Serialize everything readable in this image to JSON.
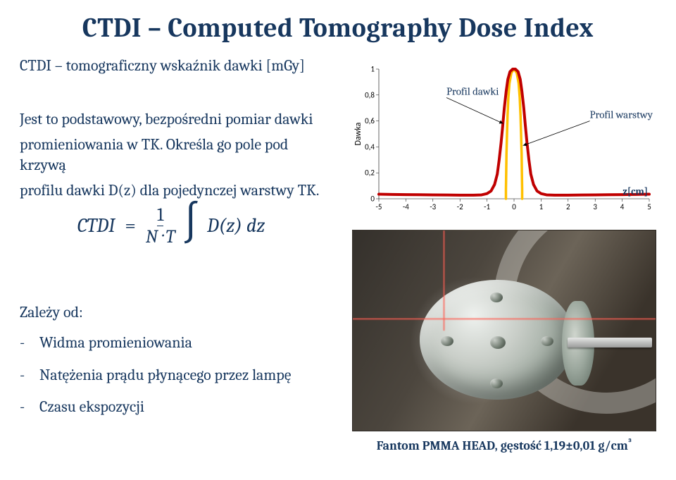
{
  "title": "CTDI – Computed Tomography Dose Index",
  "subtitle": "CTDI – tomograficzny wskaźnik dawki [mGy]",
  "paragraph_l1": "Jest to podstawowy, bezpośredni pomiar dawki",
  "paragraph_l2": "promieniowania w TK. Określa go pole pod krzywą",
  "paragraph_l3": "profilu dawki D(z) dla pojedynczej warstwy TK.",
  "formula": {
    "lhs": "CTDI",
    "frac_num": "1",
    "frac_den": "N · T",
    "integrand": "D(z) dz"
  },
  "list_lead": "Zależy od:",
  "bullets": [
    "Widma promieniowania",
    "Natężenia prądu płynącego przez lampę",
    "Czasu ekspozycji"
  ],
  "photo_caption": "Fantom PMMA HEAD, gęstość 1,19±0,01 g/cm³",
  "chart": {
    "type": "line",
    "xlim": [
      -5,
      5
    ],
    "ylim": [
      0,
      1
    ],
    "xtick_step": 1,
    "ytick_step": 0.2,
    "ylabel": "Dawka",
    "xunit_label": "z[cm]",
    "annot_profile": "Profil dawki",
    "annot_layer": "Profil warstwy",
    "background_color": "#ffffff",
    "axis_color": "#000000",
    "tick_color": "#000000",
    "tick_label_color": "#000000",
    "tick_fontsize": 11,
    "outer_curve": {
      "stroke": "#c00000",
      "stroke_width": 4,
      "points": [
        [
          -5.0,
          0.035
        ],
        [
          -4.5,
          0.033
        ],
        [
          -4.0,
          0.032
        ],
        [
          -3.5,
          0.031
        ],
        [
          -3.0,
          0.03
        ],
        [
          -2.5,
          0.029
        ],
        [
          -2.0,
          0.028
        ],
        [
          -1.5,
          0.028
        ],
        [
          -1.2,
          0.03
        ],
        [
          -1.0,
          0.04
        ],
        [
          -0.85,
          0.06
        ],
        [
          -0.72,
          0.11
        ],
        [
          -0.62,
          0.19
        ],
        [
          -0.55,
          0.3
        ],
        [
          -0.48,
          0.43
        ],
        [
          -0.42,
          0.56
        ],
        [
          -0.36,
          0.7
        ],
        [
          -0.29,
          0.83
        ],
        [
          -0.23,
          0.92
        ],
        [
          -0.15,
          0.98
        ],
        [
          -0.05,
          1.0
        ],
        [
          0.05,
          1.0
        ],
        [
          0.15,
          0.98
        ],
        [
          0.23,
          0.92
        ],
        [
          0.29,
          0.83
        ],
        [
          0.36,
          0.7
        ],
        [
          0.42,
          0.56
        ],
        [
          0.48,
          0.43
        ],
        [
          0.55,
          0.3
        ],
        [
          0.62,
          0.19
        ],
        [
          0.72,
          0.11
        ],
        [
          0.85,
          0.06
        ],
        [
          1.0,
          0.04
        ],
        [
          1.2,
          0.03
        ],
        [
          1.5,
          0.028
        ],
        [
          2.0,
          0.028
        ],
        [
          2.5,
          0.029
        ],
        [
          3.0,
          0.03
        ],
        [
          3.5,
          0.031
        ],
        [
          4.0,
          0.032
        ],
        [
          4.5,
          0.033
        ],
        [
          5.0,
          0.035
        ]
      ]
    },
    "inner_curve": {
      "stroke": "#ffc000",
      "stroke_width": 3.5,
      "points": [
        [
          -0.3,
          0.0
        ],
        [
          -0.3,
          0.07
        ],
        [
          -0.29,
          0.2
        ],
        [
          -0.28,
          0.35
        ],
        [
          -0.26,
          0.5
        ],
        [
          -0.24,
          0.64
        ],
        [
          -0.21,
          0.78
        ],
        [
          -0.17,
          0.89
        ],
        [
          -0.1,
          0.97
        ],
        [
          0.0,
          1.0
        ],
        [
          0.1,
          0.97
        ],
        [
          0.17,
          0.89
        ],
        [
          0.21,
          0.78
        ],
        [
          0.24,
          0.64
        ],
        [
          0.26,
          0.5
        ],
        [
          0.28,
          0.35
        ],
        [
          0.29,
          0.2
        ],
        [
          0.3,
          0.07
        ],
        [
          0.3,
          0.0
        ]
      ]
    },
    "arrow_profile": {
      "from": [
        -2.5,
        0.78
      ],
      "to": [
        -0.4,
        0.58
      ]
    },
    "arrow_layer": {
      "from": [
        2.8,
        0.6
      ],
      "to": [
        0.33,
        0.41
      ]
    }
  },
  "colors": {
    "text": "#17375e",
    "background": "#ffffff"
  }
}
